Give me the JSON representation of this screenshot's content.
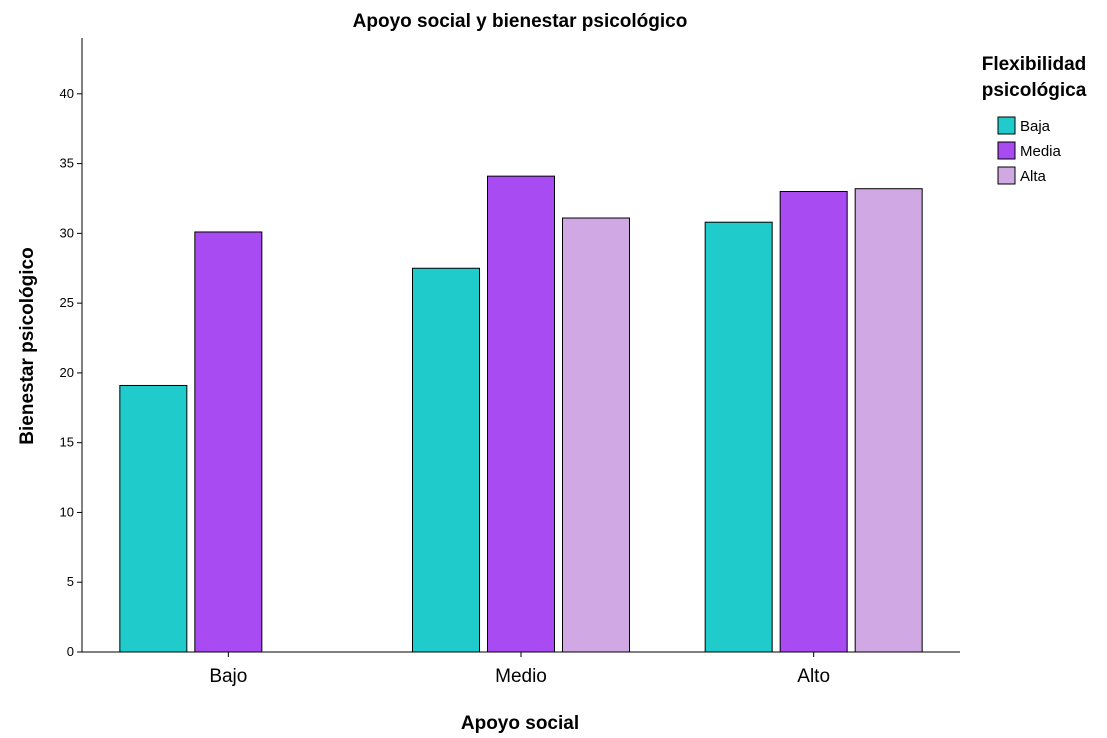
{
  "chart_data": {
    "type": "bar",
    "title": "Apoyo social y bienestar psicológico",
    "xlabel": "Apoyo social",
    "ylabel": "Bienestar psicológico",
    "categories": [
      "Bajo",
      "Medio",
      "Alto"
    ],
    "ylim": [
      0,
      44
    ],
    "yticks": [
      0,
      5,
      10,
      15,
      20,
      25,
      30,
      35,
      40
    ],
    "grid": false,
    "legend": {
      "title_lines": [
        "Flexibilidad",
        "psicológica"
      ],
      "placement": "top-right"
    },
    "series": [
      {
        "name": "Baja",
        "color": "#1fcbcb",
        "values": [
          19.1,
          27.5,
          30.8
        ]
      },
      {
        "name": "Media",
        "color": "#a94bf2",
        "values": [
          30.1,
          34.1,
          33.0
        ]
      },
      {
        "name": "Alta",
        "color": "#d0a9e4",
        "values": [
          null,
          31.1,
          33.2
        ]
      }
    ]
  }
}
